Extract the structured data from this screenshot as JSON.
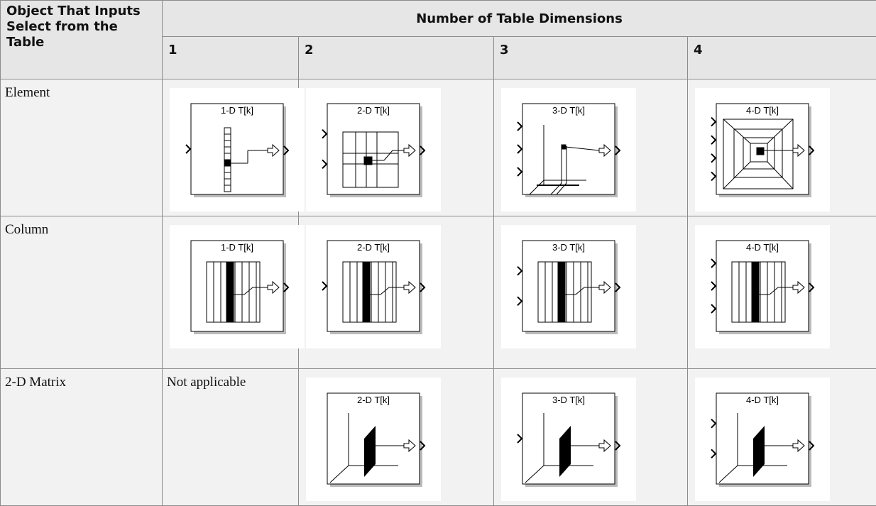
{
  "table": {
    "header": {
      "corner": "Object That Inputs Select from the Table",
      "group": "Number of Table Dimensions",
      "columns": [
        "1",
        "2",
        "3",
        "4"
      ]
    },
    "rows": [
      {
        "label": "Element",
        "cells": [
          {
            "icon": "1-D T[k]"
          },
          {
            "icon": "2-D T[k]"
          },
          {
            "icon": "3-D T[k]"
          },
          {
            "icon": "4-D T[k]"
          }
        ]
      },
      {
        "label": "Column",
        "cells": [
          {
            "icon": "1-D T[k]"
          },
          {
            "icon": "2-D T[k]"
          },
          {
            "icon": "3-D T[k]"
          },
          {
            "icon": "4-D T[k]"
          }
        ]
      },
      {
        "label": "2-D Matrix",
        "cells": [
          {
            "text": "Not applicable"
          },
          {
            "icon": "2-D T[k]"
          },
          {
            "icon": "3-D T[k]"
          },
          {
            "icon": "4-D T[k]"
          }
        ]
      }
    ]
  }
}
